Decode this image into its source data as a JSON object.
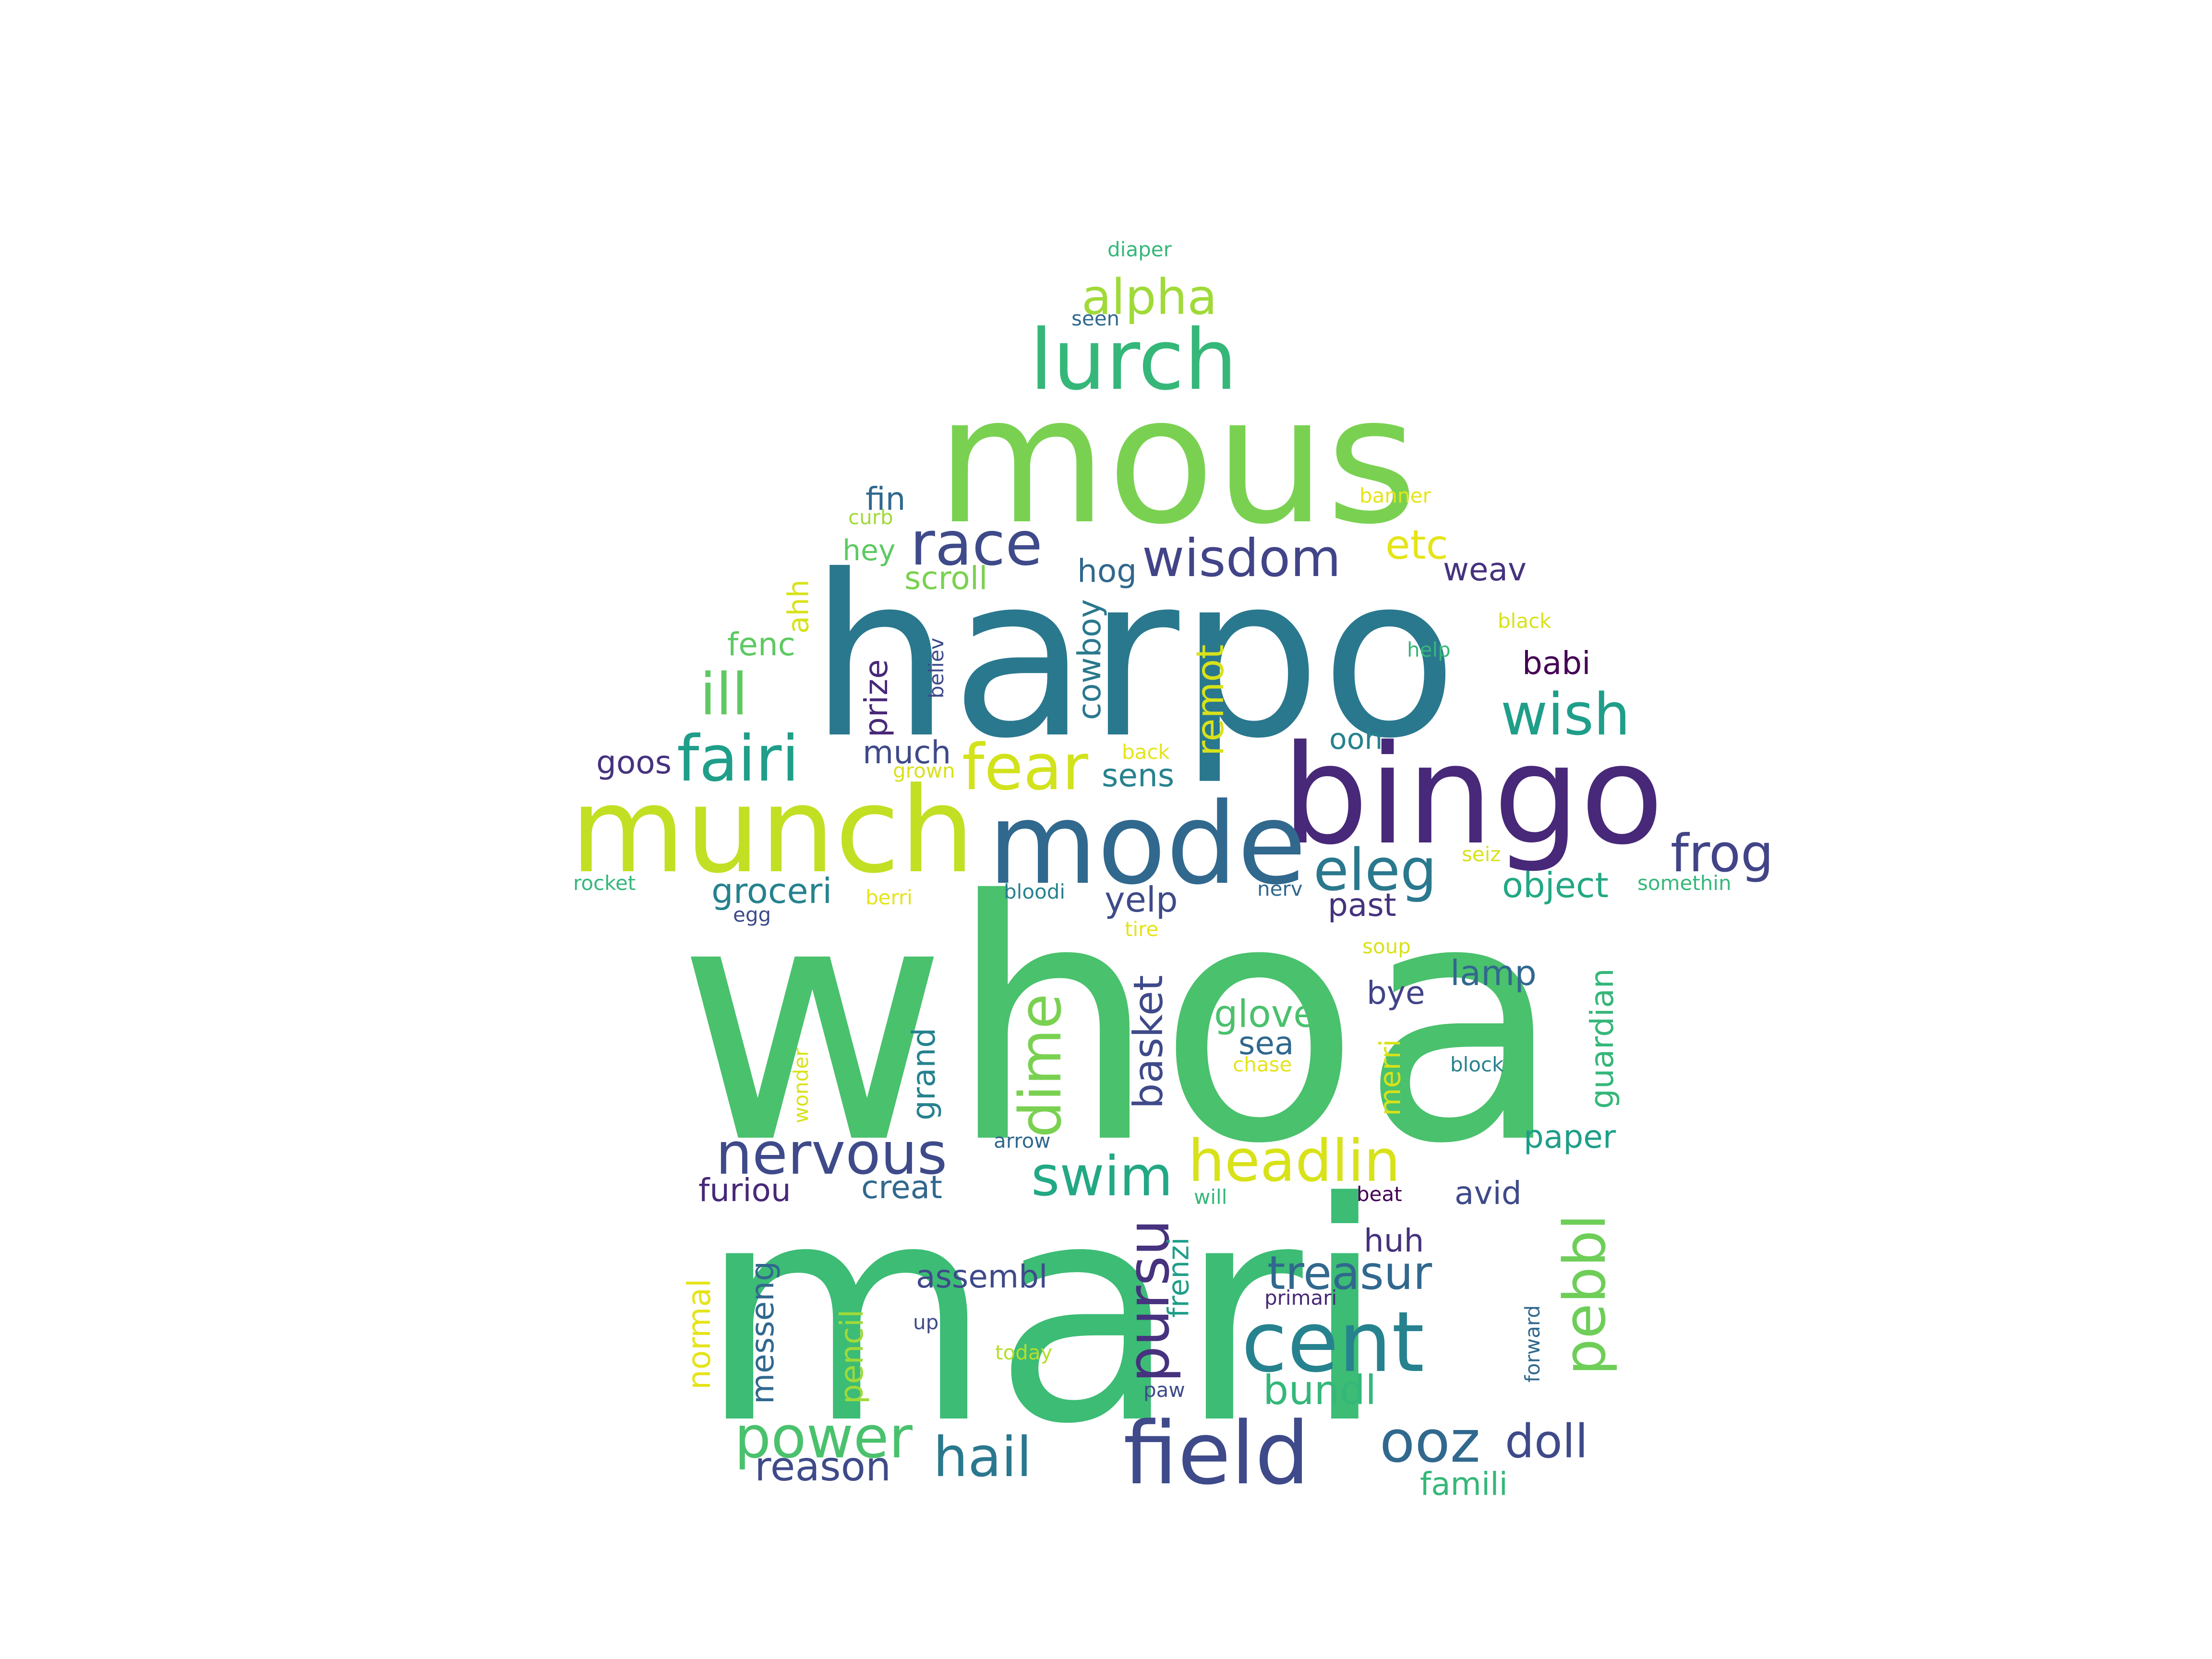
{
  "colors": {
    "background": "#ffffff",
    "palette": {
      "purple_dark": "#440154",
      "indigo": "#46327e",
      "blue_purple": "#3e4a89",
      "blue": "#31688e",
      "teal_blue": "#26828e",
      "teal": "#1f9e89",
      "green_teal": "#35b779",
      "green": "#4ac16d",
      "light_green": "#6ece58",
      "lime": "#b5de2b",
      "yellow": "#e0e51c"
    }
  },
  "words": [
    {
      "text": "whoa",
      "color": "#4ac16d"
    },
    {
      "text": "mari",
      "color": "#3cbc75"
    },
    {
      "text": "harpo",
      "color": "#2a788e"
    },
    {
      "text": "mous",
      "color": "#7ad151"
    },
    {
      "text": "bingo",
      "color": "#482878"
    },
    {
      "text": "munch",
      "color": "#c2df23"
    },
    {
      "text": "mode",
      "color": "#31688e"
    },
    {
      "text": "lurch",
      "color": "#35b779"
    },
    {
      "text": "field",
      "color": "#3e4a89"
    },
    {
      "text": "cent",
      "color": "#26828e"
    },
    {
      "text": "race",
      "color": "#3e4a89"
    },
    {
      "text": "wisdom",
      "color": "#414487"
    },
    {
      "text": "fairi",
      "color": "#1f9e89"
    },
    {
      "text": "fear",
      "color": "#d2e21b"
    },
    {
      "text": "wish",
      "color": "#1f9e89"
    },
    {
      "text": "eleg",
      "color": "#2a788e"
    },
    {
      "text": "ill",
      "color": "#5ec962"
    },
    {
      "text": "alpha",
      "color": "#a0da39"
    },
    {
      "text": "nervous",
      "color": "#3e4a89"
    },
    {
      "text": "headlin",
      "color": "#d8e219"
    },
    {
      "text": "swim",
      "color": "#22a884"
    },
    {
      "text": "power",
      "color": "#4ac16d"
    },
    {
      "text": "hail",
      "color": "#2a788e"
    },
    {
      "text": "ooz",
      "color": "#31688e"
    },
    {
      "text": "doll",
      "color": "#3e4a89"
    },
    {
      "text": "frog",
      "color": "#414487"
    },
    {
      "text": "dime",
      "color": "#7ad151"
    },
    {
      "text": "pursu",
      "color": "#46327e"
    },
    {
      "text": "treasur",
      "color": "#31688e"
    },
    {
      "text": "pebbl",
      "color": "#6ece58"
    },
    {
      "text": "bundl",
      "color": "#35b779"
    },
    {
      "text": "reason",
      "color": "#3e4a89"
    },
    {
      "text": "etc",
      "color": "#e5e419"
    },
    {
      "text": "basket",
      "color": "#3e4a89"
    },
    {
      "text": "remot",
      "color": "#d8e219"
    },
    {
      "text": "glove",
      "color": "#4ac16d"
    },
    {
      "text": "sea",
      "color": "#31688e"
    },
    {
      "text": "object",
      "color": "#22a884"
    },
    {
      "text": "groceri",
      "color": "#26828e"
    },
    {
      "text": "yelp",
      "color": "#3e4a89"
    },
    {
      "text": "past",
      "color": "#46327e"
    },
    {
      "text": "lamp",
      "color": "#31688e"
    },
    {
      "text": "bye",
      "color": "#414487"
    },
    {
      "text": "guardian",
      "color": "#35b779"
    },
    {
      "text": "paper",
      "color": "#1f9e89"
    },
    {
      "text": "avid",
      "color": "#3e4a89"
    },
    {
      "text": "huh",
      "color": "#46327e"
    },
    {
      "text": "furiou",
      "color": "#482878"
    },
    {
      "text": "creat",
      "color": "#31688e"
    },
    {
      "text": "assembl",
      "color": "#3e4a89"
    },
    {
      "text": "messeng",
      "color": "#31688e"
    },
    {
      "text": "pencil",
      "color": "#a0da39"
    },
    {
      "text": "normal",
      "color": "#e5e419"
    },
    {
      "text": "grand",
      "color": "#26828e"
    },
    {
      "text": "merri",
      "color": "#d8e219"
    },
    {
      "text": "frenzi",
      "color": "#1f9e89"
    },
    {
      "text": "famili",
      "color": "#35b779"
    },
    {
      "text": "fin",
      "color": "#31688e"
    },
    {
      "text": "hey",
      "color": "#5ec962"
    },
    {
      "text": "scroll",
      "color": "#7ad151"
    },
    {
      "text": "hog",
      "color": "#31688e"
    },
    {
      "text": "weav",
      "color": "#46327e"
    },
    {
      "text": "fenc",
      "color": "#5ec962"
    },
    {
      "text": "ahh",
      "color": "#d8e219"
    },
    {
      "text": "prize",
      "color": "#482878"
    },
    {
      "text": "believ",
      "color": "#3e4a89"
    },
    {
      "text": "cowboy",
      "color": "#2a788e"
    },
    {
      "text": "babi",
      "color": "#440154"
    },
    {
      "text": "goos",
      "color": "#46327e"
    },
    {
      "text": "much",
      "color": "#3e4a89"
    },
    {
      "text": "ooh",
      "color": "#26828e"
    },
    {
      "text": "sens",
      "color": "#26828e"
    },
    {
      "text": "help",
      "color": "#35b779"
    },
    {
      "text": "black",
      "color": "#d8e219"
    },
    {
      "text": "banner",
      "color": "#e5e419"
    },
    {
      "text": "curb",
      "color": "#a0da39"
    },
    {
      "text": "diaper",
      "color": "#35b779"
    },
    {
      "text": "seen",
      "color": "#31688e"
    },
    {
      "text": "back",
      "color": "#e5e419"
    },
    {
      "text": "grown",
      "color": "#d8e219"
    },
    {
      "text": "rocket",
      "color": "#35b779"
    },
    {
      "text": "egg",
      "color": "#3e4a89"
    },
    {
      "text": "berri",
      "color": "#e5e419"
    },
    {
      "text": "bloodi",
      "color": "#26828e"
    },
    {
      "text": "nerv",
      "color": "#31688e"
    },
    {
      "text": "seiz",
      "color": "#d8e219"
    },
    {
      "text": "somethin",
      "color": "#35b779"
    },
    {
      "text": "tire",
      "color": "#e5e419"
    },
    {
      "text": "soup",
      "color": "#d8e219"
    },
    {
      "text": "chase",
      "color": "#e5e419"
    },
    {
      "text": "block",
      "color": "#26828e"
    },
    {
      "text": "wonder",
      "color": "#d8e219"
    },
    {
      "text": "arrow",
      "color": "#31688e"
    },
    {
      "text": "will",
      "color": "#35b779"
    },
    {
      "text": "beat",
      "color": "#440154"
    },
    {
      "text": "primari",
      "color": "#482878"
    },
    {
      "text": "forward",
      "color": "#31688e"
    },
    {
      "text": "up",
      "color": "#3e4a89"
    },
    {
      "text": "today",
      "color": "#b5de2b"
    },
    {
      "text": "paw",
      "color": "#3e4a89"
    }
  ]
}
